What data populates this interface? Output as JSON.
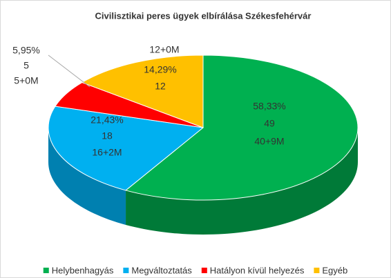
{
  "chart_data": {
    "type": "pie3d",
    "title": "Civilisztikai peres ügyek elbírálása Székesfehérvár",
    "categories": [
      "Helybenhagyás",
      "Megváltoztatás",
      "Hatályon kívül helyezés",
      "Egyéb"
    ],
    "values": [
      58.33,
      21.43,
      5.95,
      14.29
    ],
    "value_labels": [
      "58,33%",
      "21,43%",
      "5,95%",
      "14,29%"
    ],
    "counts": [
      49,
      18,
      5,
      12
    ],
    "breakdown": [
      "40+9M",
      "16+2M",
      "5+0M",
      "12+0M"
    ],
    "colors": [
      "#00b050",
      "#00b0f0",
      "#ff0000",
      "#ffc000"
    ],
    "side_colors": [
      "#007a38",
      "#0080b0",
      "#b00000",
      "#c08f00"
    ],
    "legend": "bottom"
  }
}
